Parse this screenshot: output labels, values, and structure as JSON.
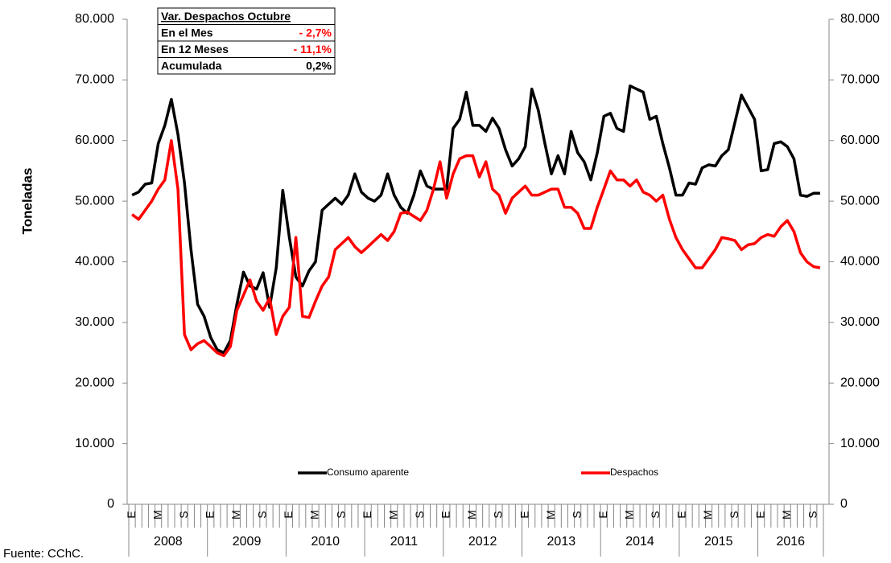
{
  "chart_data": {
    "type": "line",
    "y_label": "Toneladas",
    "source": "Fuente: CChC.",
    "categories": [
      "E",
      null,
      null,
      null,
      "M",
      null,
      null,
      null,
      "S",
      null,
      null,
      null,
      "E",
      null,
      null,
      null,
      "M",
      null,
      null,
      null,
      "S",
      null,
      null,
      null,
      "E",
      null,
      null,
      null,
      "M",
      null,
      null,
      null,
      "S",
      null,
      null,
      null,
      "E",
      null,
      null,
      null,
      "M",
      null,
      null,
      null,
      "S",
      null,
      null,
      null,
      "E",
      null,
      null,
      null,
      "M",
      null,
      null,
      null,
      "S",
      null,
      null,
      null,
      "E",
      null,
      null,
      null,
      "M",
      null,
      null,
      null,
      "S",
      null,
      null,
      null,
      "E",
      null,
      null,
      null,
      "M",
      null,
      null,
      null,
      "S",
      null,
      null,
      null,
      "E",
      null,
      null,
      null,
      "M",
      null,
      null,
      null,
      "S",
      null,
      null,
      null,
      "E",
      null,
      null,
      null,
      "M",
      null,
      null,
      null,
      "S",
      null
    ],
    "year_labels": [
      "2008",
      "2009",
      "2010",
      "2011",
      "2012",
      "2013",
      "2014",
      "2015",
      "2016"
    ],
    "series": [
      {
        "name": "Consumo aparente",
        "color": "#000000",
        "values": [
          51000,
          51500,
          52800,
          53000,
          59500,
          62500,
          66800,
          61000,
          53000,
          42000,
          33000,
          31000,
          27500,
          25500,
          25000,
          27000,
          33000,
          38300,
          36000,
          35500,
          38200,
          32500,
          39000,
          51800,
          44000,
          37500,
          36000,
          38500,
          40000,
          48500,
          49500,
          50500,
          49500,
          51000,
          54500,
          51500,
          50500,
          50000,
          51000,
          54500,
          51000,
          49000,
          48000,
          51000,
          55000,
          52500,
          52000,
          52000,
          52000,
          62000,
          63500,
          68000,
          62500,
          62500,
          61500,
          63700,
          62000,
          58500,
          55800,
          57000,
          59000,
          68500,
          65000,
          59500,
          54500,
          57500,
          54500,
          61500,
          58000,
          56500,
          53500,
          58000,
          64000,
          64500,
          62000,
          61500,
          69000,
          68500,
          68000,
          63500,
          64000,
          59500,
          55500,
          51000,
          51000,
          53000,
          52800,
          55500,
          56000,
          55800,
          57500,
          58500,
          63000,
          67500,
          65500,
          63500,
          55000,
          55200,
          59500,
          59800,
          59000,
          57000,
          51000,
          50800,
          51300,
          51300
        ]
      },
      {
        "name": "Despachos",
        "color": "#ff0000",
        "values": [
          47800,
          47000,
          48500,
          50000,
          52000,
          53500,
          60000,
          52000,
          28000,
          25500,
          26500,
          27000,
          26000,
          25000,
          24500,
          26000,
          32000,
          34500,
          37000,
          33500,
          32000,
          34000,
          28000,
          31000,
          32500,
          44000,
          31000,
          30800,
          33500,
          36000,
          37500,
          42000,
          43000,
          44000,
          42500,
          41500,
          42500,
          43500,
          44500,
          43500,
          45000,
          48000,
          48200,
          47500,
          46800,
          48500,
          52000,
          56500,
          50500,
          54500,
          57000,
          57500,
          57500,
          54000,
          56500,
          52000,
          51000,
          48000,
          50500,
          51500,
          52500,
          51000,
          51000,
          51500,
          52000,
          52000,
          49000,
          49000,
          48000,
          45500,
          45500,
          49000,
          52000,
          55000,
          53500,
          53500,
          52500,
          53500,
          51500,
          51000,
          50000,
          51000,
          47000,
          44000,
          42000,
          40500,
          39000,
          39000,
          40500,
          42000,
          44000,
          43800,
          43500,
          42000,
          42800,
          43000,
          44000,
          44500,
          44200,
          45800,
          46800,
          45000,
          41500,
          40000,
          39200,
          39000
        ]
      }
    ],
    "ylim": [
      0,
      80000
    ],
    "yticks": [
      0,
      {
        "value": 10000,
        "label": "10.000"
      },
      {
        "value": 20000,
        "label": "20.000"
      },
      {
        "value": 30000,
        "label": "30.000"
      },
      {
        "value": 40000,
        "label": "40.000"
      },
      {
        "value": 50000,
        "label": "50.000"
      },
      {
        "value": 60000,
        "label": "60.000"
      },
      {
        "value": 70000,
        "label": "70.000"
      },
      {
        "value": 80000,
        "label": "80.000"
      }
    ],
    "y2lim": [
      0,
      80000
    ],
    "y2ticks": [
      0,
      {
        "value": 10000,
        "label": "10.000"
      },
      {
        "value": 20000,
        "label": "20.000"
      },
      {
        "value": 30000,
        "label": "30.000"
      },
      {
        "value": 40000,
        "label": "40.000"
      },
      {
        "value": 50000,
        "label": "50.000"
      },
      {
        "value": 60000,
        "label": "60.000"
      },
      {
        "value": 70000,
        "label": "70.000"
      },
      {
        "value": 80000,
        "label": "80.000"
      }
    ],
    "annotation_table": {
      "title": "Var. Despachos Octubre",
      "rows": [
        [
          "En el Mes",
          "- 2,7%"
        ],
        [
          "En 12 Meses",
          "- 11,1%"
        ],
        [
          "Acumulada",
          "0,2%"
        ]
      ],
      "value_colors": [
        "#ff0000",
        "#ff0000",
        "#000000"
      ]
    }
  }
}
